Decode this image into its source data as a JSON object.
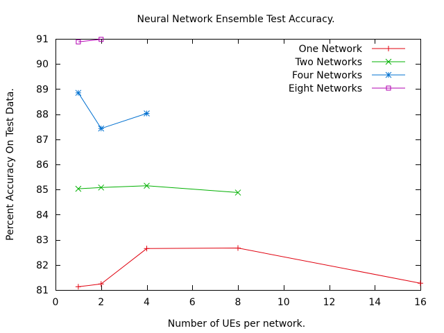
{
  "chart_data": {
    "type": "line",
    "title": "Neural Network Ensemble Test Accuracy.",
    "xlabel": "Number of UEs per network.",
    "ylabel": "Percent Accuracy On Test Data.",
    "xlim": [
      0,
      16
    ],
    "ylim": [
      81,
      91
    ],
    "xticks": [
      0,
      2,
      4,
      6,
      8,
      10,
      12,
      14,
      16
    ],
    "yticks": [
      81,
      82,
      83,
      84,
      85,
      86,
      87,
      88,
      89,
      90,
      91
    ],
    "grid": false,
    "legend_position": "top-right",
    "series": [
      {
        "name": "One Network",
        "color": "#e0000e",
        "marker": "plus",
        "x": [
          1,
          2,
          4,
          8,
          16
        ],
        "y": [
          81.13,
          81.24,
          82.65,
          82.67,
          81.27
        ]
      },
      {
        "name": "Two Networks",
        "color": "#00b000",
        "marker": "cross",
        "x": [
          1,
          2,
          4,
          8
        ],
        "y": [
          85.03,
          85.08,
          85.15,
          84.88
        ]
      },
      {
        "name": "Four Networks",
        "color": "#0070d0",
        "marker": "star",
        "x": [
          1,
          2,
          4
        ],
        "y": [
          88.85,
          87.43,
          88.03
        ]
      },
      {
        "name": "Eight Networks",
        "color": "#b000b0",
        "marker": "square",
        "x": [
          1,
          2
        ],
        "y": [
          90.88,
          90.98
        ]
      }
    ]
  }
}
